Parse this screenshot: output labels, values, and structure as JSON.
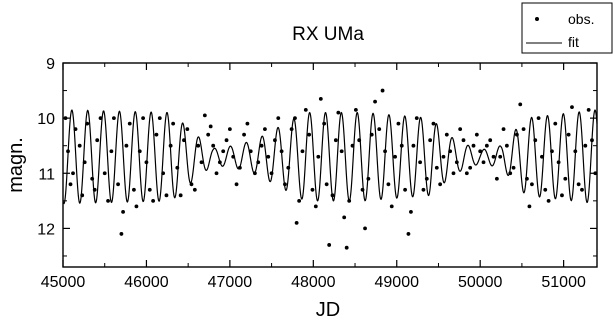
{
  "chart_data": {
    "type": "scatter",
    "title": "RX UMa",
    "xlabel": "JD",
    "ylabel": "magn.",
    "xlim": [
      45000,
      51400
    ],
    "ylim": [
      12.7,
      9.0
    ],
    "y_inverted": true,
    "xticks": [
      "45000",
      "46000",
      "47000",
      "48000",
      "49000",
      "50000",
      "51000"
    ],
    "yticks": [
      "9",
      "10",
      "11",
      "12"
    ],
    "grid": false,
    "legend": {
      "position": "top-right",
      "entries": [
        "obs.",
        "fit"
      ]
    },
    "series": [
      {
        "name": "obs.",
        "mode": "markers",
        "points": [
          [
            45030,
            10.0
          ],
          [
            45060,
            10.6
          ],
          [
            45090,
            11.2
          ],
          [
            45120,
            11.0
          ],
          [
            45150,
            10.2
          ],
          [
            45200,
            10.5
          ],
          [
            45230,
            11.4
          ],
          [
            45260,
            10.8
          ],
          [
            45290,
            10.1
          ],
          [
            45350,
            11.1
          ],
          [
            45380,
            11.3
          ],
          [
            45410,
            10.4
          ],
          [
            45450,
            10.0
          ],
          [
            45500,
            11.0
          ],
          [
            45540,
            11.5
          ],
          [
            45580,
            10.6
          ],
          [
            45610,
            10.0
          ],
          [
            45660,
            11.2
          ],
          [
            45700,
            12.1
          ],
          [
            45720,
            11.7
          ],
          [
            45760,
            10.5
          ],
          [
            45800,
            10.1
          ],
          [
            45850,
            11.3
          ],
          [
            45880,
            11.6
          ],
          [
            45920,
            10.6
          ],
          [
            45960,
            10.0
          ],
          [
            46000,
            10.8
          ],
          [
            46040,
            11.3
          ],
          [
            46080,
            11.5
          ],
          [
            46120,
            10.3
          ],
          [
            46160,
            10.0
          ],
          [
            46200,
            11.0
          ],
          [
            46240,
            11.4
          ],
          [
            46290,
            10.5
          ],
          [
            46320,
            10.1
          ],
          [
            46370,
            10.9
          ],
          [
            46410,
            11.4
          ],
          [
            46450,
            10.4
          ],
          [
            46490,
            10.2
          ],
          [
            46540,
            11.2
          ],
          [
            46580,
            11.3
          ],
          [
            46620,
            10.5
          ],
          [
            46660,
            10.8
          ],
          [
            46700,
            9.95
          ],
          [
            46740,
            10.3
          ],
          [
            46770,
            10.15
          ],
          [
            46800,
            10.5
          ],
          [
            46840,
            11.0
          ],
          [
            46880,
            10.8
          ],
          [
            46920,
            10.6
          ],
          [
            46960,
            10.4
          ],
          [
            47000,
            10.2
          ],
          [
            47040,
            10.7
          ],
          [
            47080,
            11.2
          ],
          [
            47120,
            10.9
          ],
          [
            47170,
            10.3
          ],
          [
            47210,
            10.1
          ],
          [
            47250,
            10.6
          ],
          [
            47300,
            11.0
          ],
          [
            47340,
            10.8
          ],
          [
            47380,
            10.5
          ],
          [
            47420,
            10.2
          ],
          [
            47460,
            10.7
          ],
          [
            47500,
            11.0
          ],
          [
            47540,
            10.4
          ],
          [
            47580,
            10.0
          ],
          [
            47620,
            10.6
          ],
          [
            47660,
            11.2
          ],
          [
            47700,
            10.9
          ],
          [
            47740,
            10.2
          ],
          [
            47780,
            10.0
          ],
          [
            47800,
            11.9
          ],
          [
            47830,
            11.5
          ],
          [
            47870,
            10.6
          ],
          [
            47910,
            9.85
          ],
          [
            47950,
            10.3
          ],
          [
            47990,
            11.3
          ],
          [
            48030,
            11.6
          ],
          [
            48060,
            10.7
          ],
          [
            48090,
            9.65
          ],
          [
            48130,
            10.1
          ],
          [
            48160,
            11.2
          ],
          [
            48190,
            12.3
          ],
          [
            48230,
            11.4
          ],
          [
            48270,
            10.4
          ],
          [
            48300,
            9.9
          ],
          [
            48340,
            10.6
          ],
          [
            48370,
            11.8
          ],
          [
            48400,
            12.35
          ],
          [
            48430,
            11.5
          ],
          [
            48470,
            10.5
          ],
          [
            48510,
            9.85
          ],
          [
            48550,
            10.4
          ],
          [
            48590,
            11.3
          ],
          [
            48620,
            12.0
          ],
          [
            48660,
            11.1
          ],
          [
            48700,
            10.3
          ],
          [
            48740,
            9.7
          ],
          [
            48790,
            10.2
          ],
          [
            48830,
            9.5
          ],
          [
            48860,
            10.6
          ],
          [
            48900,
            11.2
          ],
          [
            48940,
            11.6
          ],
          [
            48980,
            10.7
          ],
          [
            49020,
            10.1
          ],
          [
            49060,
            10.5
          ],
          [
            49100,
            11.3
          ],
          [
            49140,
            12.1
          ],
          [
            49170,
            11.7
          ],
          [
            49200,
            10.5
          ],
          [
            49240,
            10.0
          ],
          [
            49280,
            10.8
          ],
          [
            49320,
            11.3
          ],
          [
            49360,
            11.1
          ],
          [
            49400,
            10.4
          ],
          [
            49440,
            10.1
          ],
          [
            49480,
            10.9
          ],
          [
            49520,
            11.2
          ],
          [
            49560,
            10.7
          ],
          [
            49600,
            10.3
          ],
          [
            49640,
            10.6
          ],
          [
            49680,
            11.0
          ],
          [
            49720,
            10.8
          ],
          [
            49760,
            10.2
          ],
          [
            49800,
            10.4
          ],
          [
            49840,
            11.0
          ],
          [
            49880,
            10.9
          ],
          [
            49920,
            10.5
          ],
          [
            49960,
            10.3
          ],
          [
            50000,
            10.6
          ],
          [
            50040,
            10.8
          ],
          [
            50080,
            10.5
          ],
          [
            50120,
            10.4
          ],
          [
            50160,
            10.7
          ],
          [
            50200,
            11.1
          ],
          [
            50240,
            10.7
          ],
          [
            50280,
            10.2
          ],
          [
            50320,
            10.5
          ],
          [
            50360,
            11.0
          ],
          [
            50400,
            10.9
          ],
          [
            50440,
            10.3
          ],
          [
            50480,
            9.75
          ],
          [
            50520,
            10.2
          ],
          [
            50560,
            11.1
          ],
          [
            50590,
            11.6
          ],
          [
            50620,
            11.2
          ],
          [
            50660,
            10.4
          ],
          [
            50700,
            10.0
          ],
          [
            50740,
            10.7
          ],
          [
            50780,
            11.3
          ],
          [
            50820,
            11.5
          ],
          [
            50860,
            10.6
          ],
          [
            50900,
            10.1
          ],
          [
            50940,
            10.8
          ],
          [
            50980,
            11.4
          ],
          [
            51020,
            11.1
          ],
          [
            51060,
            10.3
          ],
          [
            51100,
            9.8
          ],
          [
            51140,
            10.6
          ],
          [
            51180,
            11.2
          ],
          [
            51220,
            11.3
          ],
          [
            51260,
            10.5
          ],
          [
            51300,
            9.85
          ],
          [
            51340,
            10.4
          ],
          [
            51380,
            11.0
          ]
        ]
      },
      {
        "name": "fit",
        "mode": "line",
        "model": "sinusoid with slowly varying amplitude",
        "mean": 10.7,
        "period_days": 190,
        "amplitude_envelope": [
          [
            45000,
            0.85
          ],
          [
            46300,
            0.8
          ],
          [
            46550,
            0.45
          ],
          [
            46800,
            0.15
          ],
          [
            47050,
            0.2
          ],
          [
            47300,
            0.3
          ],
          [
            47600,
            0.55
          ],
          [
            47900,
            0.8
          ],
          [
            48600,
            0.8
          ],
          [
            49400,
            0.7
          ],
          [
            49700,
            0.3
          ],
          [
            50000,
            0.12
          ],
          [
            50250,
            0.2
          ],
          [
            50550,
            0.7
          ],
          [
            51400,
            0.85
          ]
        ]
      }
    ]
  }
}
